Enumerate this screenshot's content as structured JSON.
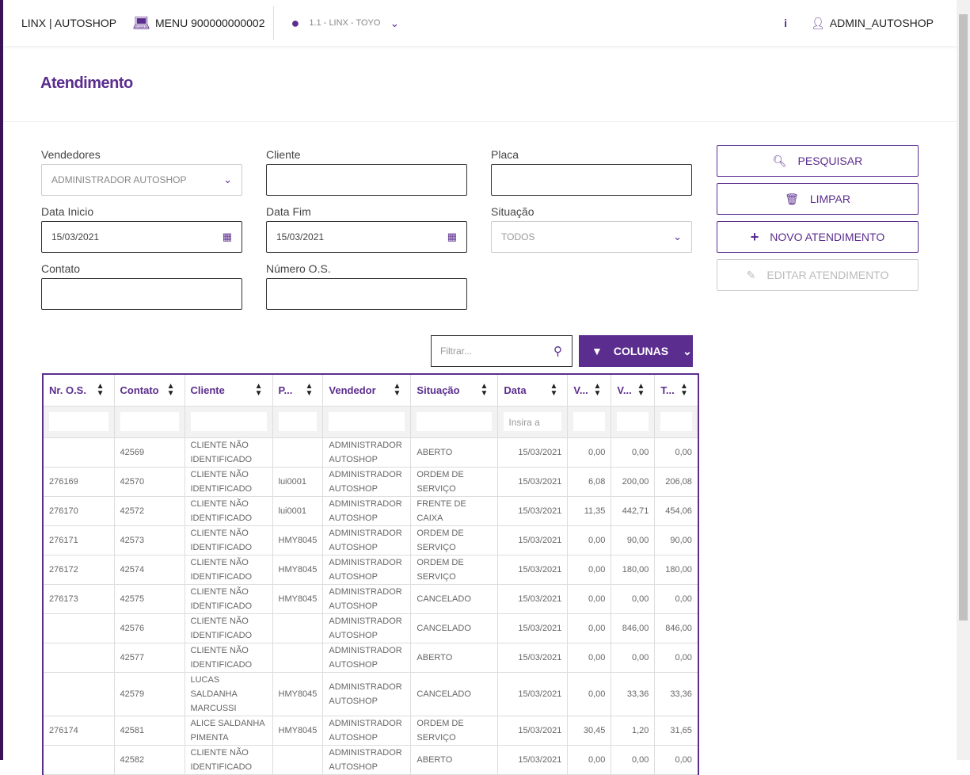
{
  "header": {
    "brand": "LINX | AUTOSHOP",
    "menu": "MENU 900000000002",
    "location": "1.1 - LINX - TOYO",
    "user": "ADMIN_AUTOSHOP"
  },
  "page_title": "Atendimento",
  "form": {
    "vendedores": {
      "label": "Vendedores",
      "value": "ADMINISTRADOR AUTOSHOP"
    },
    "cliente": {
      "label": "Cliente",
      "value": ""
    },
    "placa": {
      "label": "Placa",
      "value": ""
    },
    "data_inicio": {
      "label": "Data Inicio",
      "value": "15/03/2021"
    },
    "data_fim": {
      "label": "Data Fim",
      "value": "15/03/2021"
    },
    "situacao": {
      "label": "Situação",
      "value": "TODOS"
    },
    "contato": {
      "label": "Contato",
      "value": ""
    },
    "numero_os": {
      "label": "Número O.S.",
      "value": ""
    }
  },
  "buttons": {
    "pesquisar": "PESQUISAR",
    "limpar": "LIMPAR",
    "novo": "NOVO ATENDIMENTO",
    "editar": "EDITAR ATENDIMENTO"
  },
  "grid": {
    "filter_placeholder": "Filtrar...",
    "columns_button": "COLUNAS",
    "date_filter_placeholder": "Insira a",
    "columns": [
      "Nr. O.S.",
      "Contato",
      "Cliente",
      "P...",
      "Vendedor",
      "Situação",
      "Data",
      "V...",
      "V...",
      "T..."
    ],
    "rows": [
      [
        "",
        "42569",
        "CLIENTE NÃO IDENTIFICADO",
        "",
        "ADMINISTRADOR AUTOSHOP",
        "ABERTO",
        "15/03/2021",
        "0,00",
        "0,00",
        "0,00"
      ],
      [
        "276169",
        "42570",
        "CLIENTE NÃO IDENTIFICADO",
        "lui0001",
        "ADMINISTRADOR AUTOSHOP",
        "ORDEM DE SERVIÇO",
        "15/03/2021",
        "6,08",
        "200,00",
        "206,08"
      ],
      [
        "276170",
        "42572",
        "CLIENTE NÃO IDENTIFICADO",
        "lui0001",
        "ADMINISTRADOR AUTOSHOP",
        "FRENTE DE CAIXA",
        "15/03/2021",
        "11,35",
        "442,71",
        "454,06"
      ],
      [
        "276171",
        "42573",
        "CLIENTE NÃO IDENTIFICADO",
        "HMY8045",
        "ADMINISTRADOR AUTOSHOP",
        "ORDEM DE SERVIÇO",
        "15/03/2021",
        "0,00",
        "90,00",
        "90,00"
      ],
      [
        "276172",
        "42574",
        "CLIENTE NÃO IDENTIFICADO",
        "HMY8045",
        "ADMINISTRADOR AUTOSHOP",
        "ORDEM DE SERVIÇO",
        "15/03/2021",
        "0,00",
        "180,00",
        "180,00"
      ],
      [
        "276173",
        "42575",
        "CLIENTE NÃO IDENTIFICADO",
        "HMY8045",
        "ADMINISTRADOR AUTOSHOP",
        "CANCELADO",
        "15/03/2021",
        "0,00",
        "0,00",
        "0,00"
      ],
      [
        "",
        "42576",
        "CLIENTE NÃO IDENTIFICADO",
        "",
        "ADMINISTRADOR AUTOSHOP",
        "CANCELADO",
        "15/03/2021",
        "0,00",
        "846,00",
        "846,00"
      ],
      [
        "",
        "42577",
        "CLIENTE NÃO IDENTIFICADO",
        "",
        "ADMINISTRADOR AUTOSHOP",
        "ABERTO",
        "15/03/2021",
        "0,00",
        "0,00",
        "0,00"
      ],
      [
        "",
        "42579",
        "LUCAS SALDANHA MARCUSSI",
        "HMY8045",
        "ADMINISTRADOR AUTOSHOP",
        "CANCELADO",
        "15/03/2021",
        "0,00",
        "33,36",
        "33,36"
      ],
      [
        "276174",
        "42581",
        "ALICE SALDANHA PIMENTA",
        "HMY8045",
        "ADMINISTRADOR AUTOSHOP",
        "ORDEM DE SERVIÇO",
        "15/03/2021",
        "30,45",
        "1,20",
        "31,65"
      ],
      [
        "",
        "42582",
        "CLIENTE NÃO IDENTIFICADO",
        "",
        "ADMINISTRADOR AUTOSHOP",
        "ABERTO",
        "15/03/2021",
        "0,00",
        "0,00",
        "0,00"
      ]
    ]
  },
  "colors": {
    "accent": "#5b2d8e",
    "sidebar": "#3a1357"
  }
}
